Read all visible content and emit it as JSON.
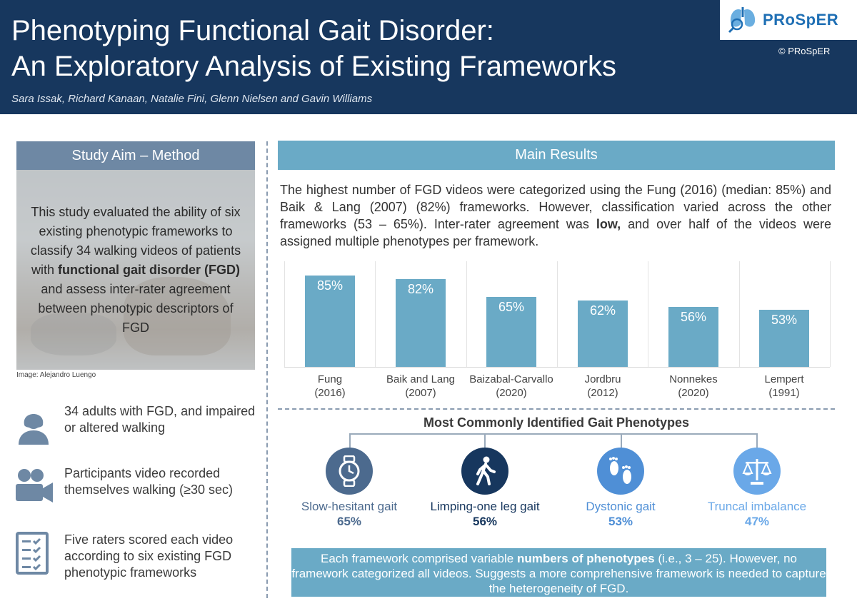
{
  "header": {
    "title_line1": "Phenotyping Functional Gait Disorder:",
    "title_line2": "An Exploratory Analysis of Existing Frameworks",
    "authors": "Sara Issak, Richard Kanaan, Natalie Fini, Glenn Nielsen and Gavin Williams",
    "logo_text": "PRoSpER",
    "copyright": "© PRoSpER"
  },
  "left": {
    "aim_heading": "Study Aim – Method",
    "aim_text_1": "This study evaluated the ability of six existing phenotypic frameworks to classify 34 walking videos of patients with ",
    "aim_text_bold": "functional gait disorder (FGD)",
    "aim_text_2": " and assess inter-rater agreement between phenotypic descriptors of FGD",
    "image_credit": "Image: Alejandro Luengo",
    "bullets": [
      {
        "icon": "person-icon",
        "text": "34 adults with FGD, and impaired or altered walking"
      },
      {
        "icon": "video-camera-icon",
        "text": "Participants video recorded themselves walking (≥30 sec)"
      },
      {
        "icon": "checklist-icon",
        "text": "Five raters scored each video according to six existing FGD phenotypic frameworks"
      }
    ]
  },
  "right": {
    "results_heading": "Main Results",
    "results_text_1": "The highest number of FGD videos were categorized using the Fung (2016) (median: 85%) and Baik & Lang (2007) (82%) frameworks. However, classification varied across the other frameworks (53 – 65%). Inter-rater agreement was ",
    "results_text_bold": "low,",
    "results_text_2": " and over half of the videos were assigned multiple phenotypes per framework.",
    "phenotypes_title": "Most Commonly Identified Gait Phenotypes",
    "phenotypes": [
      {
        "name": "Slow-hesitant gait",
        "pct": "65%",
        "icon": "stopwatch-icon",
        "color": "#4c6a8e"
      },
      {
        "name": "Limping-one leg gait",
        "pct": "56%",
        "icon": "walking-person-icon",
        "color": "#17375e"
      },
      {
        "name": "Dystonic gait",
        "pct": "53%",
        "icon": "footprints-icon",
        "color": "#4f8fd6"
      },
      {
        "name": "Truncal imbalance",
        "pct": "47%",
        "icon": "balance-scale-icon",
        "color": "#6aa8e8"
      }
    ],
    "conclusion_1": "Each framework comprised variable ",
    "conclusion_bold": "numbers of phenotypes",
    "conclusion_2": " (i.e., 3 – 25). However, no framework categorized all videos. Suggests a more comprehensive framework is needed to capture the heterogeneity of FGD."
  },
  "chart_data": {
    "type": "bar",
    "categories": [
      "Fung (2016)",
      "Baik and Lang (2007)",
      "Baizabal-Carvallo (2020)",
      "Jordbru (2012)",
      "Nonnekes (2020)",
      "Lempert (1991)"
    ],
    "category_lines": [
      [
        "Fung",
        "(2016)"
      ],
      [
        "Baik and Lang",
        "(2007)"
      ],
      [
        "Baizabal-Carvallo",
        "(2020)"
      ],
      [
        "Jordbru",
        "(2012)"
      ],
      [
        "Nonnekes",
        "(2020)"
      ],
      [
        "Lempert",
        "(1991)"
      ]
    ],
    "values": [
      85,
      82,
      65,
      62,
      56,
      53
    ],
    "labels": [
      "85%",
      "82%",
      "65%",
      "62%",
      "56%",
      "53%"
    ],
    "ylim": [
      0,
      100
    ],
    "title": "",
    "xlabel": "",
    "ylabel": "",
    "color": "#6aaac6"
  }
}
